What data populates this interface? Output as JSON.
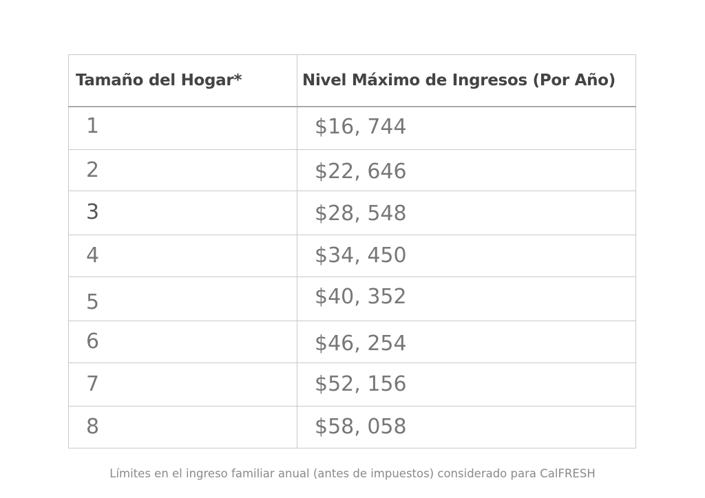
{
  "table": {
    "headers": [
      "Tamaño del Hogar*",
      "Nivel Máximo de Ingresos (Por Año)"
    ],
    "rows": [
      [
        "1",
        "$16, 744"
      ],
      [
        "2",
        "$22, 646"
      ],
      [
        "3",
        "$28, 548"
      ],
      [
        "4",
        "$34, 450"
      ],
      [
        "5",
        "$40, 352"
      ],
      [
        "6",
        "$46, 254"
      ],
      [
        "7",
        "$52, 156"
      ],
      [
        "8",
        "$58, 058"
      ]
    ]
  },
  "caption": "Límites en el ingreso familiar anual (antes de impuestos) considerado para CalFRESH"
}
